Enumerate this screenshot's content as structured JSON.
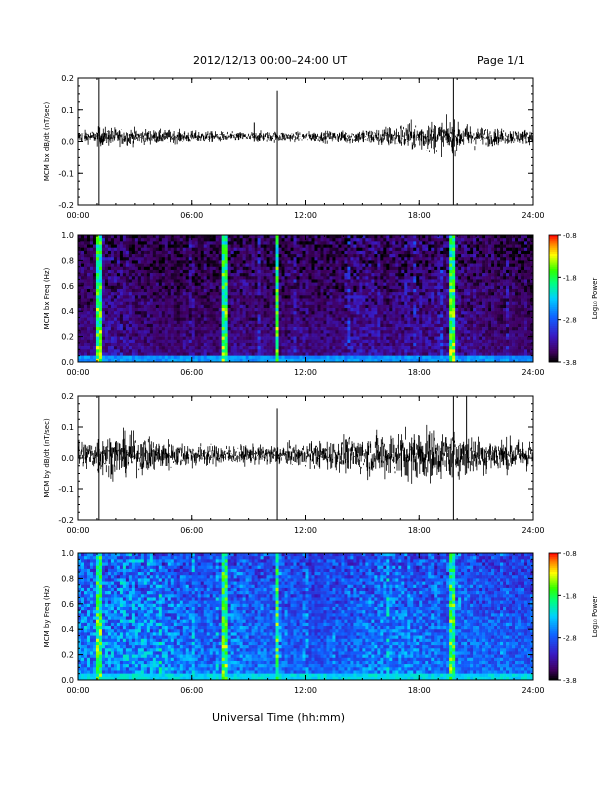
{
  "header": {
    "title": "2012/12/13  00:00–24:00 UT",
    "page_label": "Page 1/1"
  },
  "footer": {
    "xlabel": "Universal Time (hh:mm)"
  },
  "colorbar": {
    "label": "Log₁₀ Power",
    "ticks": [
      "-0.8",
      "-1.8",
      "-2.8",
      "-3.8"
    ],
    "range": [
      -3.8,
      -0.8
    ]
  },
  "chart_data": [
    {
      "type": "line",
      "ylabel": "MCM bx dB/dt (nT/sec)",
      "x_range_hours": [
        0,
        24
      ],
      "x_tick_labels": [
        "00:00",
        "06:00",
        "12:00",
        "18:00",
        "24:00"
      ],
      "y_range": [
        -0.2,
        0.2
      ],
      "y_tick_labels": [
        "0.2",
        "0.1",
        "0.0",
        "-0.1",
        "-0.2"
      ],
      "baseline": 0.015,
      "noise_amplitude_by_hour": [
        0.012,
        0.018,
        0.016,
        0.014,
        0.013,
        0.012,
        0.011,
        0.01,
        0.009,
        0.01,
        0.01,
        0.009,
        0.01,
        0.011,
        0.013,
        0.016,
        0.02,
        0.026,
        0.03,
        0.03,
        0.024,
        0.018,
        0.015,
        0.014
      ],
      "spikes": [
        {
          "hour": 1.1,
          "min": -0.2,
          "max": 0.2
        },
        {
          "hour": 10.5,
          "min": -0.2,
          "max": 0.16
        },
        {
          "hour": 19.8,
          "min": -0.2,
          "max": 0.2
        },
        {
          "hour": 9.3,
          "min": 0.0,
          "max": 0.06
        }
      ]
    },
    {
      "type": "heatmap",
      "ylabel": "MCM bx Freq (Hz)",
      "x_range_hours": [
        0,
        24
      ],
      "x_tick_labels": [
        "00:00",
        "06:00",
        "12:00",
        "18:00",
        "24:00"
      ],
      "y_range": [
        0,
        1.0
      ],
      "y_tick_labels": [
        "1.0",
        "0.8",
        "0.6",
        "0.4",
        "0.2",
        "0.0"
      ],
      "z_range": [
        -3.8,
        -0.8
      ],
      "base_level": -3.6,
      "low_freq_level": -2.7,
      "activity_by_hour": [
        0.3,
        0.45,
        0.4,
        0.3,
        0.25,
        0.2,
        0.22,
        0.25,
        0.35,
        0.3,
        0.3,
        0.35,
        0.25,
        0.3,
        0.5,
        0.45,
        0.35,
        0.4,
        0.45,
        0.5,
        0.4,
        0.3,
        0.25,
        0.2
      ],
      "bright_columns_hours": [
        1.1,
        7.7,
        10.5,
        19.8
      ]
    },
    {
      "type": "line",
      "ylabel": "MCM by dB/dt (nT/sec)",
      "x_range_hours": [
        0,
        24
      ],
      "x_tick_labels": [
        "00:00",
        "06:00",
        "12:00",
        "18:00",
        "24:00"
      ],
      "y_range": [
        -0.2,
        0.2
      ],
      "y_tick_labels": [
        "0.2",
        "0.1",
        "0.0",
        "-0.1",
        "-0.2"
      ],
      "baseline": 0.01,
      "noise_amplitude_by_hour": [
        0.03,
        0.04,
        0.04,
        0.035,
        0.03,
        0.025,
        0.022,
        0.02,
        0.018,
        0.018,
        0.02,
        0.022,
        0.025,
        0.03,
        0.035,
        0.04,
        0.045,
        0.05,
        0.05,
        0.045,
        0.04,
        0.035,
        0.032,
        0.03
      ],
      "spikes": [
        {
          "hour": 1.1,
          "min": -0.2,
          "max": 0.2
        },
        {
          "hour": 10.5,
          "min": -0.2,
          "max": 0.16
        },
        {
          "hour": 19.8,
          "min": -0.2,
          "max": 0.2
        },
        {
          "hour": 20.5,
          "min": -0.05,
          "max": 0.2
        }
      ]
    },
    {
      "type": "heatmap",
      "ylabel": "MCM by Freq (Hz)",
      "x_range_hours": [
        0,
        24
      ],
      "x_tick_labels": [
        "00:00",
        "06:00",
        "12:00",
        "18:00",
        "24:00"
      ],
      "y_range": [
        0,
        1.0
      ],
      "y_tick_labels": [
        "1.0",
        "0.8",
        "0.6",
        "0.4",
        "0.2",
        "0.0"
      ],
      "z_range": [
        -3.8,
        -0.8
      ],
      "base_level": -3.0,
      "low_freq_level": -2.4,
      "activity_by_hour": [
        0.7,
        0.75,
        0.8,
        0.75,
        0.7,
        0.6,
        0.5,
        0.55,
        0.6,
        0.5,
        0.45,
        0.4,
        0.35,
        0.4,
        0.5,
        0.6,
        0.65,
        0.6,
        0.55,
        0.5,
        0.5,
        0.45,
        0.4,
        0.4
      ],
      "bright_columns_hours": [
        1.1,
        7.7,
        10.5,
        19.8
      ]
    }
  ]
}
